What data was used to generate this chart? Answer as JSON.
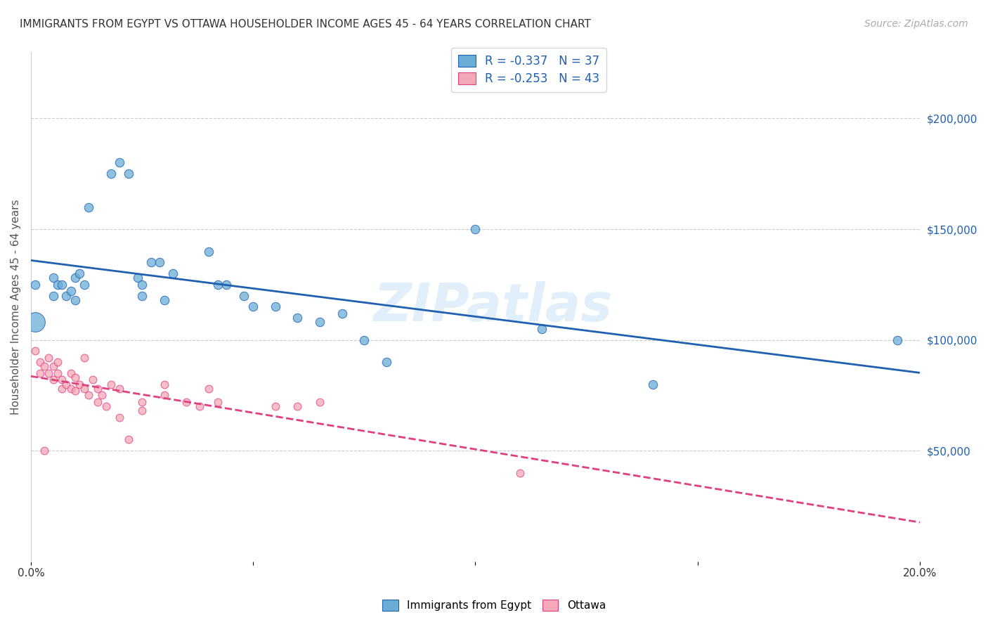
{
  "title": "IMMIGRANTS FROM EGYPT VS OTTAWA HOUSEHOLDER INCOME AGES 45 - 64 YEARS CORRELATION CHART",
  "source": "Source: ZipAtlas.com",
  "ylabel": "Householder Income Ages 45 - 64 years",
  "xlim": [
    0.0,
    0.2
  ],
  "ylim": [
    0,
    230000
  ],
  "xticks": [
    0.0,
    0.05,
    0.1,
    0.15,
    0.2
  ],
  "ytick_labels_right": [
    "$50,000",
    "$100,000",
    "$150,000",
    "$200,000"
  ],
  "ytick_values_right": [
    50000,
    100000,
    150000,
    200000
  ],
  "legend1_r": "-0.337",
  "legend1_n": "37",
  "legend2_r": "-0.253",
  "legend2_n": "43",
  "legend_labels": [
    "Immigrants from Egypt",
    "Ottawa"
  ],
  "blue_color": "#6aaed6",
  "pink_color": "#f4a8b8",
  "line_blue": "#2060b0",
  "line_pink": "#e04080",
  "watermark": "ZIPatlas",
  "blue_scatter": [
    [
      0.001,
      125000
    ],
    [
      0.005,
      128000
    ],
    [
      0.005,
      120000
    ],
    [
      0.006,
      125000
    ],
    [
      0.007,
      125000
    ],
    [
      0.008,
      120000
    ],
    [
      0.009,
      122000
    ],
    [
      0.01,
      128000
    ],
    [
      0.01,
      118000
    ],
    [
      0.011,
      130000
    ],
    [
      0.012,
      125000
    ],
    [
      0.013,
      160000
    ],
    [
      0.018,
      175000
    ],
    [
      0.02,
      180000
    ],
    [
      0.022,
      175000
    ],
    [
      0.024,
      128000
    ],
    [
      0.025,
      125000
    ],
    [
      0.025,
      120000
    ],
    [
      0.027,
      135000
    ],
    [
      0.029,
      135000
    ],
    [
      0.03,
      118000
    ],
    [
      0.032,
      130000
    ],
    [
      0.04,
      140000
    ],
    [
      0.042,
      125000
    ],
    [
      0.044,
      125000
    ],
    [
      0.048,
      120000
    ],
    [
      0.05,
      115000
    ],
    [
      0.055,
      115000
    ],
    [
      0.06,
      110000
    ],
    [
      0.065,
      108000
    ],
    [
      0.07,
      112000
    ],
    [
      0.075,
      100000
    ],
    [
      0.08,
      90000
    ],
    [
      0.1,
      150000
    ],
    [
      0.115,
      105000
    ],
    [
      0.14,
      80000
    ],
    [
      0.195,
      100000
    ]
  ],
  "pink_scatter": [
    [
      0.001,
      95000
    ],
    [
      0.002,
      90000
    ],
    [
      0.002,
      85000
    ],
    [
      0.003,
      88000
    ],
    [
      0.004,
      92000
    ],
    [
      0.004,
      85000
    ],
    [
      0.005,
      88000
    ],
    [
      0.005,
      82000
    ],
    [
      0.006,
      85000
    ],
    [
      0.006,
      90000
    ],
    [
      0.007,
      82000
    ],
    [
      0.007,
      78000
    ],
    [
      0.008,
      80000
    ],
    [
      0.009,
      85000
    ],
    [
      0.009,
      78000
    ],
    [
      0.01,
      83000
    ],
    [
      0.01,
      77000
    ],
    [
      0.011,
      80000
    ],
    [
      0.012,
      92000
    ],
    [
      0.012,
      78000
    ],
    [
      0.013,
      75000
    ],
    [
      0.014,
      82000
    ],
    [
      0.015,
      78000
    ],
    [
      0.015,
      72000
    ],
    [
      0.016,
      75000
    ],
    [
      0.017,
      70000
    ],
    [
      0.018,
      80000
    ],
    [
      0.02,
      78000
    ],
    [
      0.02,
      65000
    ],
    [
      0.022,
      55000
    ],
    [
      0.025,
      72000
    ],
    [
      0.025,
      68000
    ],
    [
      0.03,
      80000
    ],
    [
      0.03,
      75000
    ],
    [
      0.035,
      72000
    ],
    [
      0.038,
      70000
    ],
    [
      0.04,
      78000
    ],
    [
      0.042,
      72000
    ],
    [
      0.055,
      70000
    ],
    [
      0.06,
      70000
    ],
    [
      0.065,
      72000
    ],
    [
      0.11,
      40000
    ],
    [
      0.003,
      50000
    ]
  ],
  "blue_point_size": 80,
  "pink_point_size": 60,
  "big_blue_size": 400,
  "big_blue_point": [
    0.001,
    108000
  ],
  "grid_color": "#cccccc",
  "bg_color": "#ffffff"
}
